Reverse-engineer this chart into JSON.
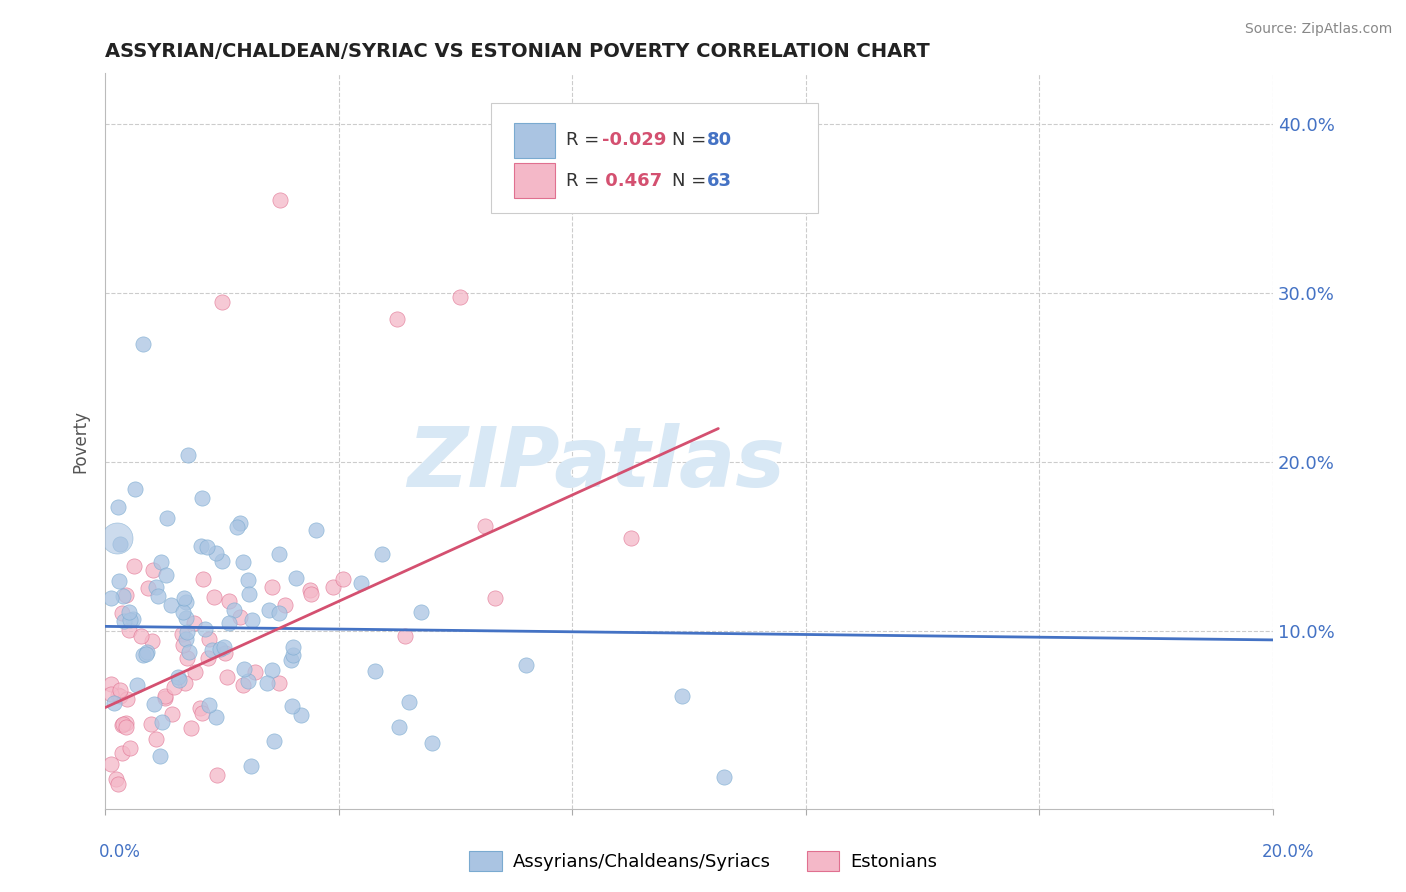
{
  "title": "ASSYRIAN/CHALDEAN/SYRIAC VS ESTONIAN POVERTY CORRELATION CHART",
  "source": "Source: ZipAtlas.com",
  "ylabel": "Poverty",
  "xlim": [
    0.0,
    0.2
  ],
  "ylim": [
    -0.005,
    0.43
  ],
  "yticks": [
    0.1,
    0.2,
    0.3,
    0.4
  ],
  "ytick_labels": [
    "10.0%",
    "20.0%",
    "30.0%",
    "40.0%"
  ],
  "xticks": [
    0.0,
    0.04,
    0.08,
    0.12,
    0.16,
    0.2
  ],
  "blue_R": -0.029,
  "blue_N": 80,
  "pink_R": 0.467,
  "pink_N": 63,
  "blue_color": "#aac4e2",
  "blue_edge_color": "#7aaad0",
  "blue_line_color": "#4472c4",
  "pink_color": "#f4b8c8",
  "pink_edge_color": "#e07090",
  "pink_line_color": "#d45070",
  "legend_label_blue": "Assyrians/Chaldeans/Syriacs",
  "legend_label_pink": "Estonians",
  "background_color": "#ffffff",
  "watermark_text": "ZIPatlas",
  "watermark_color": "#d8e8f5",
  "grid_color": "#cccccc",
  "title_color": "#222222",
  "source_color": "#888888",
  "ylabel_color": "#555555",
  "tick_label_color": "#4472c4",
  "legend_R_color_blue": "#d45070",
  "legend_R_color_pink": "#d45070",
  "legend_N_color": "#4472c4"
}
